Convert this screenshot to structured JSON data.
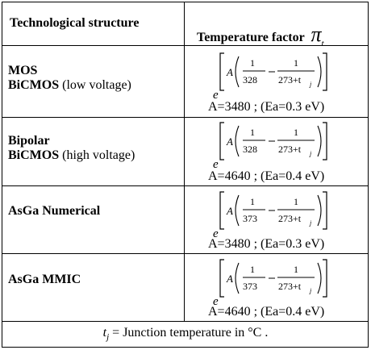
{
  "header": {
    "left": "Technological structure",
    "right": "Temperature factor",
    "symbol": "π",
    "symbol_sub": "t"
  },
  "rows": [
    {
      "line1": "MOS",
      "line2_bold": "BiCMOS",
      "line2_rest": " (low voltage)",
      "formula": {
        "base": "e",
        "A": "A",
        "num1": "1",
        "den1": "328",
        "num2": "1",
        "den2": "273+t",
        "den2_sub": "j"
      },
      "a_line": "A=3480 ; (Ea=0.3 eV)"
    },
    {
      "line1": "Bipolar",
      "line2_bold": "BiCMOS",
      "line2_rest": " (high voltage)",
      "formula": {
        "base": "e",
        "A": "A",
        "num1": "1",
        "den1": "328",
        "num2": "1",
        "den2": "273+t",
        "den2_sub": "j"
      },
      "a_line": "A=4640 ; (Ea=0.4 eV)"
    },
    {
      "line1": "AsGa Numerical",
      "line2_bold": "",
      "line2_rest": "",
      "formula": {
        "base": "e",
        "A": "A",
        "num1": "1",
        "den1": "373",
        "num2": "1",
        "den2": "273+t",
        "den2_sub": "j"
      },
      "a_line": "A=3480 ; (Ea=0.3 eV)"
    },
    {
      "line1": "AsGa MMIC",
      "line2_bold": "",
      "line2_rest": "",
      "formula": {
        "base": "e",
        "A": "A",
        "num1": "1",
        "den1": "373",
        "num2": "1",
        "den2": "273+t",
        "den2_sub": "j"
      },
      "a_line": "A=4640 ; (Ea=0.4 eV)"
    }
  ],
  "footer": {
    "symbol": "t",
    "symbol_sub": "j",
    "text": " = Junction temperature in °C ."
  }
}
